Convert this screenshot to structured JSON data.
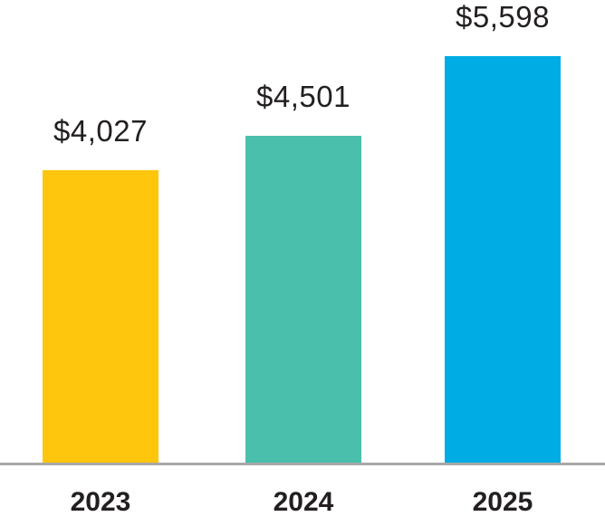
{
  "chart_data": {
    "type": "bar",
    "categories": [
      "2023",
      "2024",
      "2025"
    ],
    "values": [
      4027,
      4501,
      5598
    ],
    "value_labels": [
      "$4,027",
      "$4,501",
      "$5,598"
    ],
    "series_colors": [
      "#FEC60D",
      "#49BFAC",
      "#00ACE4"
    ],
    "currency_prefix": "$",
    "ylim": [
      0,
      5800
    ],
    "grid": false,
    "legend": "none",
    "value_label_position": "above-bar",
    "tick_label_position": "below-axis",
    "axis_line_color": "#A8A8A8",
    "label_text_color": "#231F20"
  }
}
